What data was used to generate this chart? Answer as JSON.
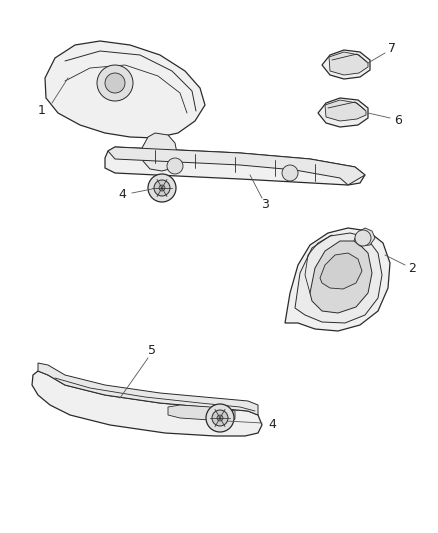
{
  "bg_color": "#ffffff",
  "line_color": "#2a2a2a",
  "fill_color": "#f5f5f5",
  "ann_color": "#555555",
  "label_color": "#222222",
  "fig_width": 4.38,
  "fig_height": 5.33,
  "dpi": 100,
  "lw": 0.9,
  "ann_lw": 0.6,
  "fs": 8.5
}
